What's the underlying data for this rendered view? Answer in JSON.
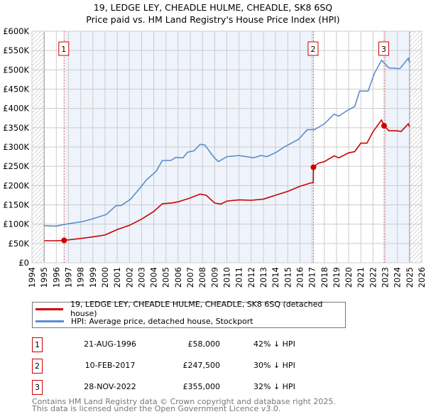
{
  "title_line1": "19, LEDGE LEY, CHEADLE HULME, CHEADLE, SK8 6SQ",
  "title_line2": "Price paid vs. HM Land Registry's House Price Index (HPI)",
  "colors": {
    "price": "#cc0000",
    "hpi": "#5b8ccc",
    "shade": "#eef3fc"
  },
  "chart_data": {
    "type": "line",
    "xlim": [
      1994,
      2026
    ],
    "ylim": [
      0,
      600000
    ],
    "xticks": [
      "1994",
      "1995",
      "1996",
      "1997",
      "1998",
      "1999",
      "2000",
      "2001",
      "2002",
      "2003",
      "2004",
      "2005",
      "2006",
      "2007",
      "2008",
      "2009",
      "2010",
      "2011",
      "2012",
      "2013",
      "2014",
      "2015",
      "2016",
      "2017",
      "2018",
      "2019",
      "2020",
      "2021",
      "2022",
      "2023",
      "2024",
      "2025",
      "2026"
    ],
    "yticks": [
      {
        "v": 0,
        "label": "£0"
      },
      {
        "v": 50000,
        "label": "£50K"
      },
      {
        "v": 100000,
        "label": "£100K"
      },
      {
        "v": 150000,
        "label": "£150K"
      },
      {
        "v": 200000,
        "label": "£200K"
      },
      {
        "v": 250000,
        "label": "£250K"
      },
      {
        "v": 300000,
        "label": "£300K"
      },
      {
        "v": 350000,
        "label": "£350K"
      },
      {
        "v": 400000,
        "label": "£400K"
      },
      {
        "v": 450000,
        "label": "£450K"
      },
      {
        "v": 500000,
        "label": "£500K"
      },
      {
        "v": 550000,
        "label": "£550K"
      },
      {
        "v": 600000,
        "label": "£600K"
      }
    ],
    "grid": true,
    "data_range": [
      1995,
      2025
    ],
    "series": [
      {
        "name": "19, LEDGE LEY, CHEADLE HULME, CHEADLE, SK8 6SQ (detached house)",
        "color": "#cc0000",
        "x": [
          1995,
          1996,
          1996.64,
          1998,
          1999,
          2000,
          2001,
          2002,
          2003,
          2004,
          2004.7,
          2005.5,
          2006,
          2007,
          2007.8,
          2008.3,
          2009,
          2009.5,
          2010,
          2011,
          2012,
          2013,
          2014,
          2015,
          2016,
          2016.9,
          2017.1,
          2017.11,
          2017.5,
          2018,
          2018.8,
          2019.2,
          2020,
          2020.5,
          2021,
          2021.5,
          2022,
          2022.7,
          2022.91,
          2023.3,
          2024,
          2024.3,
          2024.9,
          2025
        ],
        "y": [
          57000,
          57000,
          58000,
          63000,
          67000,
          72000,
          86000,
          97000,
          113000,
          133000,
          153000,
          155000,
          158000,
          168000,
          178000,
          175000,
          155000,
          152000,
          160000,
          163000,
          162000,
          165000,
          175000,
          185000,
          198000,
          207000,
          207000,
          247500,
          258000,
          262000,
          277000,
          272000,
          285000,
          288000,
          310000,
          310000,
          340000,
          370000,
          355000,
          342000,
          342000,
          340000,
          360000,
          352000
        ]
      },
      {
        "name": "HPI: Average price, detached house, Stockport",
        "color": "#5b8ccc",
        "x": [
          1995,
          1996,
          1996.6,
          1998.2,
          1999.1,
          2000.1,
          2000.9,
          2001.3,
          2002.1,
          2002.9,
          2003.4,
          2004.2,
          2004.7,
          2005.4,
          2005.8,
          2006.4,
          2006.8,
          2007.3,
          2007.8,
          2008.2,
          2008.9,
          2009.3,
          2010,
          2011,
          2012.2,
          2012.8,
          2013.3,
          2014.1,
          2014.7,
          2015.9,
          2016.6,
          2017.2,
          2018,
          2018.8,
          2019.2,
          2019.9,
          2020.5,
          2020.9,
          2021.6,
          2022.1,
          2022.7,
          2023.3,
          2024.2,
          2024.9,
          2025
        ],
        "y": [
          96000,
          95000,
          99000,
          107000,
          115000,
          125000,
          148000,
          148000,
          165000,
          195000,
          215000,
          237000,
          265000,
          265000,
          273000,
          272000,
          287000,
          290000,
          307000,
          305000,
          275000,
          262000,
          275000,
          278000,
          272000,
          278000,
          275000,
          287000,
          300000,
          320000,
          345000,
          345000,
          360000,
          385000,
          380000,
          395000,
          405000,
          445000,
          445000,
          490000,
          525000,
          505000,
          503000,
          530000,
          518000
        ]
      }
    ],
    "sales": [
      {
        "label": "1",
        "x": 1996.64,
        "y": 58000
      },
      {
        "label": "2",
        "x": 2017.11,
        "y": 247500
      },
      {
        "label": "3",
        "x": 2022.91,
        "y": 355000
      }
    ],
    "shaded_periods": [
      [
        1996.64,
        2017.11
      ],
      [
        2022.91,
        2025
      ]
    ]
  },
  "legend": {
    "price": "19, LEDGE LEY, CHEADLE HULME, CHEADLE, SK8 6SQ (detached house)",
    "hpi": "HPI: Average price, detached house, Stockport"
  },
  "transactions": [
    {
      "num": "1",
      "date": "21-AUG-1996",
      "price": "£58,000",
      "hpi": "42% ↓ HPI"
    },
    {
      "num": "2",
      "date": "10-FEB-2017",
      "price": "£247,500",
      "hpi": "30% ↓ HPI"
    },
    {
      "num": "3",
      "date": "28-NOV-2022",
      "price": "£355,000",
      "hpi": "32% ↓ HPI"
    }
  ],
  "footer": {
    "line1": "Contains HM Land Registry data © Crown copyright and database right 2025.",
    "line2": "This data is licensed under the Open Government Licence v3.0."
  }
}
